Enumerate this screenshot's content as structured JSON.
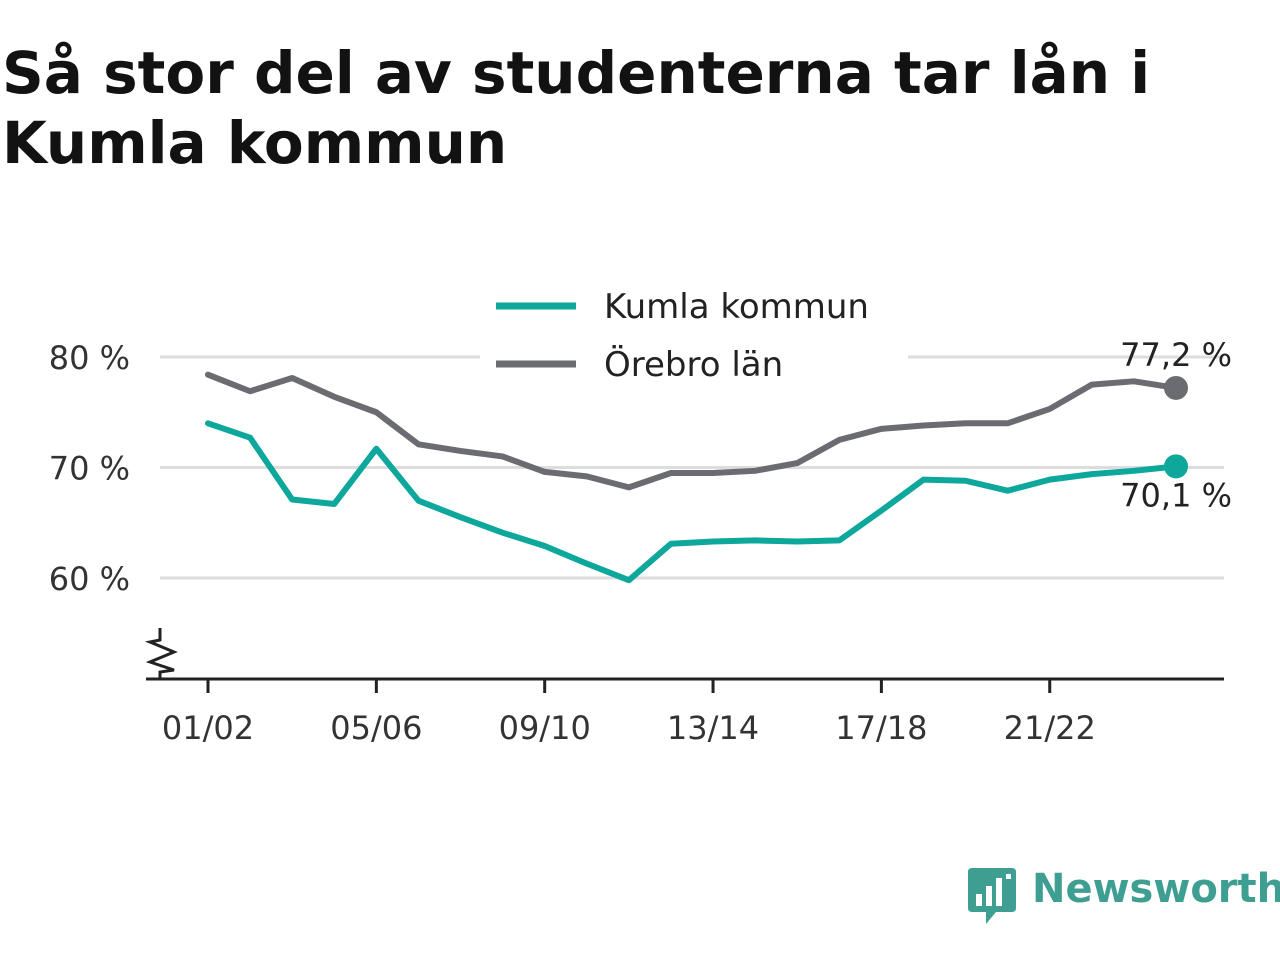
{
  "title": "Så stor del av studenterna tar lån i Kumla kommun",
  "brand": {
    "name": "Newsworthy",
    "color": "#3f9e92"
  },
  "chart_data": {
    "type": "line",
    "x": [
      "01/02",
      "02/03",
      "03/04",
      "04/05",
      "05/06",
      "06/07",
      "07/08",
      "08/09",
      "09/10",
      "10/11",
      "11/12",
      "12/13",
      "13/14",
      "14/15",
      "15/16",
      "16/17",
      "17/18",
      "18/19",
      "19/20",
      "20/21",
      "21/22",
      "22/23",
      "23/24",
      "24/25"
    ],
    "x_tick_labels": [
      "01/02",
      "05/06",
      "09/10",
      "13/14",
      "17/18",
      "21/22"
    ],
    "series": [
      {
        "name": "Kumla kommun",
        "color": "#0ea79b",
        "values": [
          74.0,
          72.7,
          67.1,
          66.7,
          71.7,
          67.0,
          65.5,
          64.1,
          62.9,
          61.3,
          59.8,
          63.1,
          63.3,
          63.4,
          63.3,
          63.4,
          66.1,
          68.9,
          68.8,
          67.9,
          68.9,
          69.4,
          69.7,
          70.1
        ],
        "end_label": "70,1 %"
      },
      {
        "name": "Örebro län",
        "color": "#6b6b72",
        "values": [
          78.4,
          76.9,
          78.1,
          76.4,
          75.0,
          72.1,
          71.5,
          71.0,
          69.6,
          69.2,
          68.2,
          69.5,
          69.5,
          69.7,
          70.4,
          72.5,
          73.5,
          73.8,
          74.0,
          74.0,
          75.3,
          77.5,
          77.8,
          77.2
        ],
        "end_label": "77,2 %"
      }
    ],
    "y_ticks": [
      60,
      70,
      80
    ],
    "y_tick_labels": [
      "60 %",
      "70 %",
      "80 %"
    ],
    "ylim": [
      51,
      84
    ],
    "y_axis_break": true,
    "grid": true,
    "legend_position": "top-center"
  }
}
